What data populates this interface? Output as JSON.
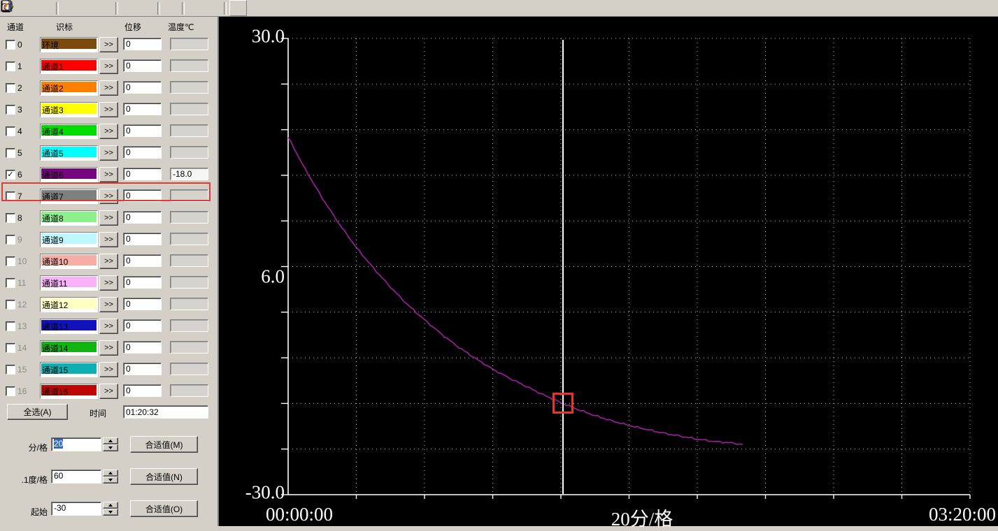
{
  "toolbar": {
    "icons": [
      {
        "name": "new-file-icon",
        "disabled": false
      },
      {
        "name": "open-file-icon",
        "disabled": false
      },
      {
        "name": "save-icon",
        "disabled": false
      },
      {
        "name": "play-icon",
        "disabled": true
      },
      {
        "name": "pause-icon",
        "disabled": true
      },
      {
        "name": "step-forward-icon",
        "disabled": true
      },
      {
        "name": "tools-icon",
        "disabled": false
      },
      {
        "name": "properties-icon",
        "disabled": false
      },
      {
        "name": "sign-123-icon",
        "disabled": false
      },
      {
        "name": "print-icon",
        "disabled": false
      },
      {
        "name": "print-preview-icon",
        "disabled": false
      },
      {
        "name": "help-icon",
        "disabled": false
      }
    ]
  },
  "panel": {
    "headers": {
      "channel": "通道",
      "label": "识标",
      "displacement": "位移",
      "temperature": "温度℃"
    },
    "expand_label": ">>",
    "channels": [
      {
        "num": "0",
        "label": "环境",
        "color": "#7c4a0f",
        "checked": false,
        "enabled": true,
        "displacement": "0",
        "temperature": ""
      },
      {
        "num": "1",
        "label": "通道1",
        "color": "#ff0000",
        "checked": false,
        "enabled": true,
        "displacement": "0",
        "temperature": ""
      },
      {
        "num": "2",
        "label": "通道2",
        "color": "#ff7f00",
        "checked": false,
        "enabled": true,
        "displacement": "0",
        "temperature": ""
      },
      {
        "num": "3",
        "label": "通道3",
        "color": "#ffff00",
        "checked": false,
        "enabled": true,
        "displacement": "0",
        "temperature": ""
      },
      {
        "num": "4",
        "label": "通道4",
        "color": "#00dd00",
        "checked": false,
        "enabled": true,
        "displacement": "0",
        "temperature": ""
      },
      {
        "num": "5",
        "label": "通道5",
        "color": "#00ffff",
        "checked": false,
        "enabled": true,
        "displacement": "0",
        "temperature": ""
      },
      {
        "num": "6",
        "label": "通道6",
        "color": "#75077e",
        "checked": true,
        "enabled": true,
        "displacement": "0",
        "temperature": "-18.0",
        "highlighted": true
      },
      {
        "num": "7",
        "label": "通道7",
        "color": "#7f7f7f",
        "checked": false,
        "enabled": true,
        "displacement": "0",
        "temperature": ""
      },
      {
        "num": "8",
        "label": "通道8",
        "color": "#8cf08c",
        "checked": false,
        "enabled": true,
        "displacement": "0",
        "temperature": ""
      },
      {
        "num": "9",
        "label": "通道9",
        "color": "#bdf6ff",
        "checked": false,
        "enabled": false,
        "displacement": "0",
        "temperature": ""
      },
      {
        "num": "10",
        "label": "通道10",
        "color": "#f6ada5",
        "checked": false,
        "enabled": false,
        "displacement": "0",
        "temperature": ""
      },
      {
        "num": "11",
        "label": "通道11",
        "color": "#f8b3f8",
        "checked": false,
        "enabled": false,
        "displacement": "0",
        "temperature": ""
      },
      {
        "num": "12",
        "label": "通道12",
        "color": "#ffffc4",
        "checked": false,
        "enabled": false,
        "displacement": "0",
        "temperature": ""
      },
      {
        "num": "13",
        "label": "通道13",
        "color": "#1212bc",
        "checked": false,
        "enabled": false,
        "displacement": "0",
        "temperature": ""
      },
      {
        "num": "14",
        "label": "通道14",
        "color": "#12b412",
        "checked": false,
        "enabled": false,
        "displacement": "0",
        "temperature": ""
      },
      {
        "num": "15",
        "label": "通道15",
        "color": "#0eaeb2",
        "checked": false,
        "enabled": false,
        "displacement": "0",
        "temperature": ""
      },
      {
        "num": "16",
        "label": "通道16",
        "color": "#c00505",
        "checked": false,
        "enabled": false,
        "displacement": "0",
        "temperature": ""
      }
    ],
    "select_all_label": "全选(A)",
    "time_label": "时间",
    "time_value": "01:20:32",
    "controls": [
      {
        "label": "分/格",
        "value": "20",
        "selected": true,
        "button": "合适值(M)"
      },
      {
        "label": ".1度/格",
        "value": "60",
        "selected": false,
        "button": "合适值(N)"
      },
      {
        "label": "起始",
        "value": "-30",
        "selected": false,
        "button": "合适值(O)"
      }
    ]
  },
  "chart_data": {
    "type": "line",
    "bg_color": "#000000",
    "axis_color": "#ffffff",
    "grid": true,
    "grid_dot_color": "#c0c0c0",
    "ylim": [
      -30,
      30
    ],
    "y_divisions": 10,
    "y_per_div": 6,
    "x_range_minutes": [
      0,
      200
    ],
    "x_divisions": 10,
    "x_minutes_per_div": 20,
    "y_tick_labels": [
      "30.0",
      "6.0",
      "-30.0"
    ],
    "x_start_label": "00:00:00",
    "xlabel": "20分/格",
    "x_end_label": "03:20:00",
    "series": [
      {
        "name": "通道6",
        "color": "#a21ca2",
        "x_minutes": [
          0,
          5,
          10,
          15,
          20,
          25,
          30,
          35,
          40,
          45,
          50,
          55,
          60,
          65,
          70,
          75,
          80,
          85,
          90,
          95,
          100,
          105,
          110,
          115,
          120,
          125,
          130,
          133.3
        ],
        "values": [
          17.0,
          12.8,
          9.0,
          5.6,
          2.5,
          -0.2,
          -2.7,
          -5.0,
          -7.0,
          -8.9,
          -10.6,
          -12.1,
          -13.5,
          -14.7,
          -15.8,
          -16.9,
          -17.9,
          -18.8,
          -19.6,
          -20.3,
          -20.9,
          -21.4,
          -21.9,
          -22.3,
          -22.7,
          -23.0,
          -23.2,
          -23.4
        ]
      }
    ],
    "cursor": {
      "time": "01:20:32",
      "x_minutes": 80.53,
      "value": -18.0,
      "line_color": "#ffffff",
      "square_color": "#e8342a"
    }
  }
}
